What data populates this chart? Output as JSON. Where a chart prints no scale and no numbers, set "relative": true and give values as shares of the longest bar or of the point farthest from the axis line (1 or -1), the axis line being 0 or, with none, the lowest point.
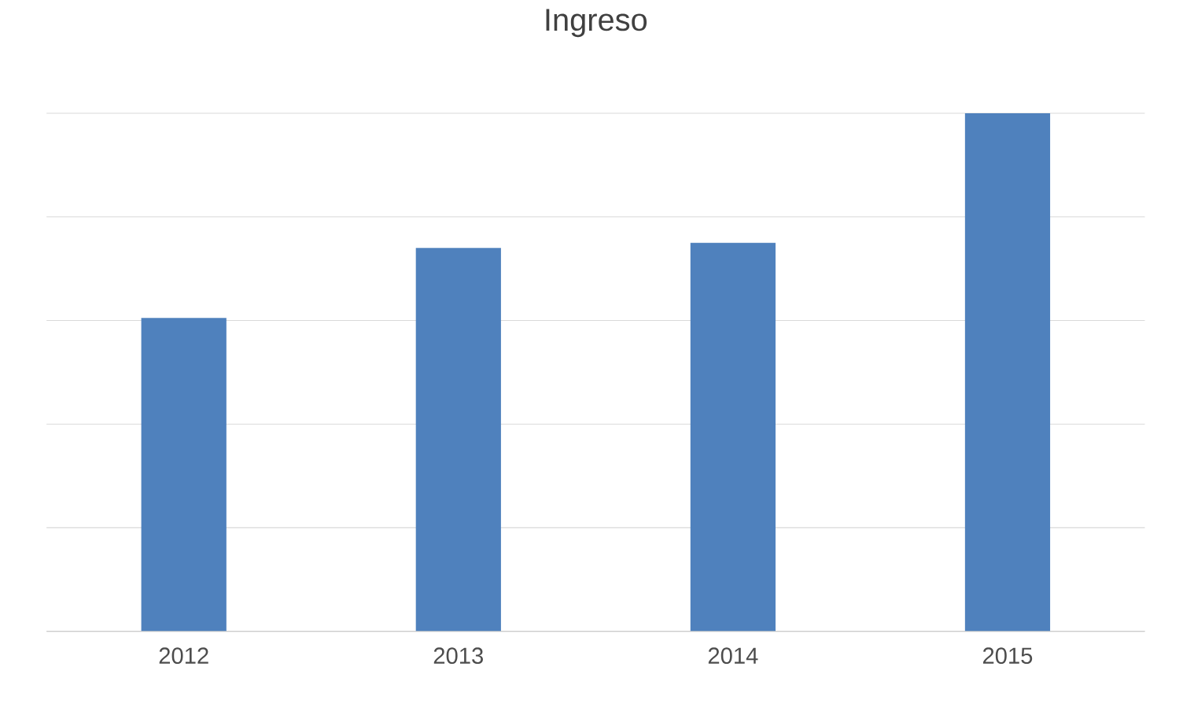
{
  "chart_data": {
    "type": "bar",
    "title": "Ingreso",
    "categories": [
      "2012",
      "2013",
      "2014",
      "2015"
    ],
    "values": [
      0.605,
      0.74,
      0.75,
      1
    ],
    "color": "#4f81bd",
    "relative": true,
    "grid": "y"
  }
}
